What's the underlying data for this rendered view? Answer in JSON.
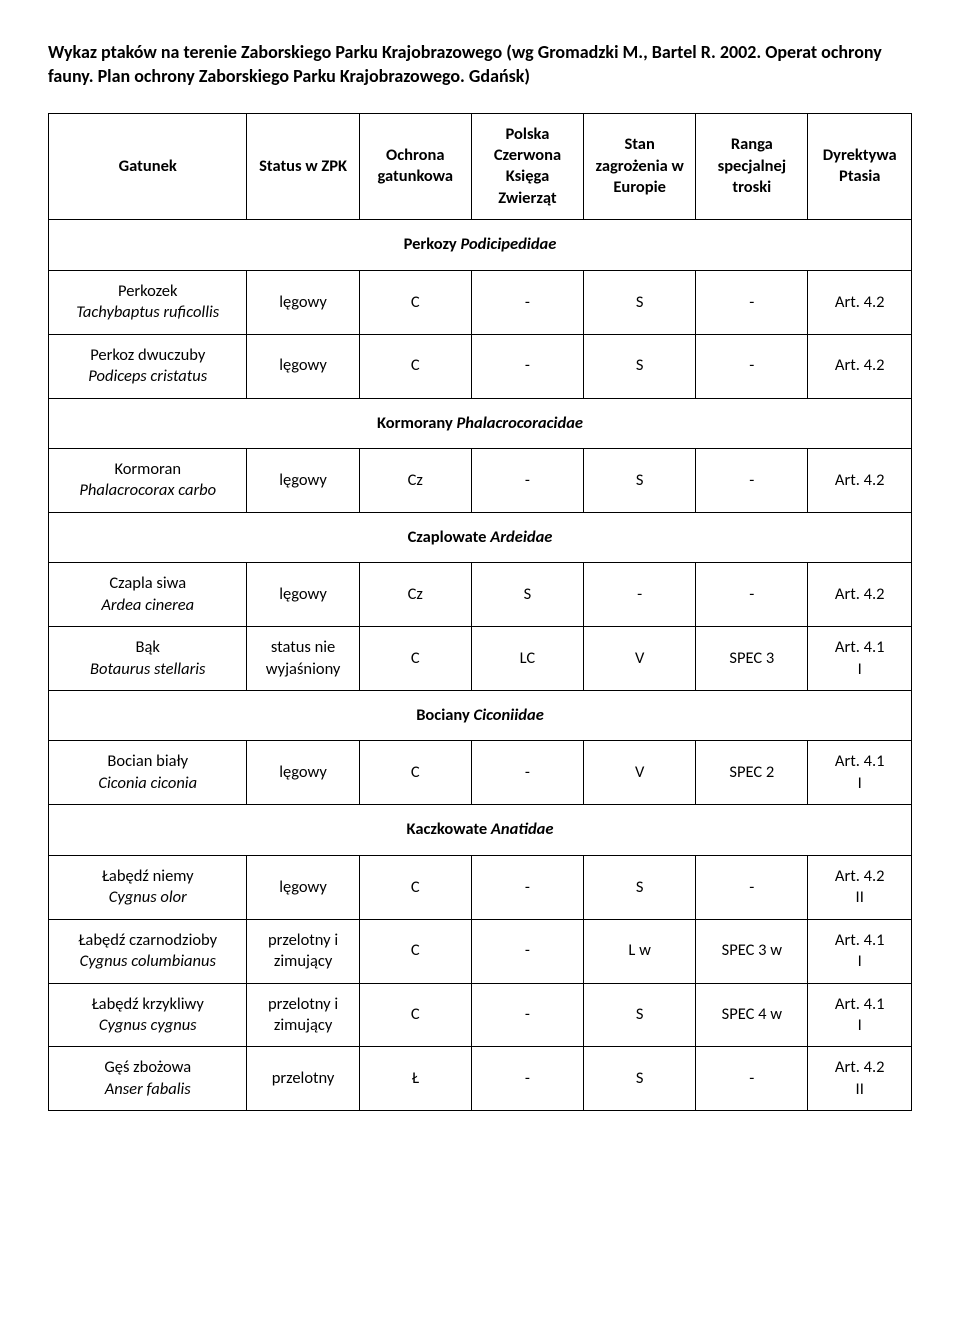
{
  "title": "Wykaz ptaków na terenie Zaborskiego Parku Krajobrazowego (wg Gromadzki M., Bartel R. 2002. Operat ochrony fauny. Plan ochrony Zaborskiego Parku Krajobrazowego. Gdańsk)",
  "headers": {
    "species": "Gatunek",
    "status": "Status w ZPK",
    "ochrona": "Ochrona gatunkowa",
    "polska": "Polska Czerwona Księga Zwierząt",
    "stan": "Stan zagrożenia w Europie",
    "ranga": "Ranga specjalnej troski",
    "dyr": "Dyrektywa Ptasia"
  },
  "sections": [
    {
      "name": "Perkozy",
      "latin": "Podicipedidae",
      "rows": [
        {
          "pl": "Perkozek",
          "lat": "Tachybaptus ruficollis",
          "status": "lęgowy",
          "ochrona": "C",
          "polska": "-",
          "stan": "S",
          "ranga": "-",
          "dyr": "Art. 4.2"
        },
        {
          "pl": "Perkoz dwuczuby",
          "lat": "Podiceps cristatus",
          "status": "lęgowy",
          "ochrona": "C",
          "polska": "-",
          "stan": "S",
          "ranga": "-",
          "dyr": "Art. 4.2"
        }
      ]
    },
    {
      "name": "Kormorany",
      "latin": "Phalacrocoracidae",
      "rows": [
        {
          "pl": "Kormoran",
          "lat": "Phalacrocorax carbo",
          "status": "lęgowy",
          "ochrona": "Cz",
          "polska": "-",
          "stan": "S",
          "ranga": "-",
          "dyr": "Art. 4.2"
        }
      ]
    },
    {
      "name": "Czaplowate",
      "latin": "Ardeidae",
      "rows": [
        {
          "pl": "Czapla siwa",
          "lat": "Ardea cinerea",
          "status": "lęgowy",
          "ochrona": "Cz",
          "polska": "S",
          "stan": "-",
          "ranga": "-",
          "dyr": "Art. 4.2"
        },
        {
          "pl": "Bąk",
          "lat": "Botaurus stellaris",
          "status": "status nie wyjaśniony",
          "ochrona": "C",
          "polska": "LC",
          "stan": "V",
          "ranga": "SPEC 3",
          "dyr": "Art. 4.1\nI"
        }
      ]
    },
    {
      "name": "Bociany",
      "latin": "Ciconiidae",
      "rows": [
        {
          "pl": "Bocian biały",
          "lat": "Ciconia ciconia",
          "status": "lęgowy",
          "ochrona": "C",
          "polska": "-",
          "stan": "V",
          "ranga": "SPEC 2",
          "dyr": "Art. 4.1\nI"
        }
      ]
    },
    {
      "name": "Kaczkowate",
      "latin": "Anatidae",
      "rows": [
        {
          "pl": "Łabędź niemy",
          "lat": "Cygnus olor",
          "status": "lęgowy",
          "ochrona": "C",
          "polska": "-",
          "stan": "S",
          "ranga": "-",
          "dyr": "Art. 4.2\nII"
        },
        {
          "pl": "Łabędź czarnodzioby",
          "lat": "Cygnus columbianus",
          "status": "przelotny i zimujący",
          "ochrona": "C",
          "polska": "-",
          "stan": "L w",
          "ranga": "SPEC 3 w",
          "dyr": "Art. 4.1\nI"
        },
        {
          "pl": "Łabędź krzykliwy",
          "lat": "Cygnus cygnus",
          "status": "przelotny i zimujący",
          "ochrona": "C",
          "polska": "-",
          "stan": "S",
          "ranga": "SPEC 4 w",
          "dyr": "Art. 4.1\nI"
        },
        {
          "pl": "Gęś zbożowa",
          "lat": "Anser fabalis",
          "status": "przelotny",
          "ochrona": "Ł",
          "polska": "-",
          "stan": "S",
          "ranga": "-",
          "dyr": "Art. 4.2\nII"
        }
      ]
    }
  ]
}
